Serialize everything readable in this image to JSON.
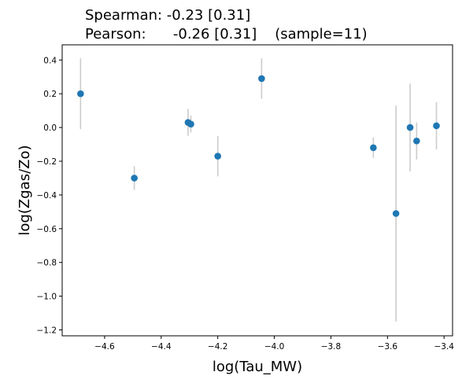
{
  "chart_data": {
    "type": "scatter",
    "title_lines": [
      "Spearman: -0.23 [0.31]",
      "Pearson:      -0.26 [0.31]    (sample=11)"
    ],
    "xlabel": "log(Tau_MW)",
    "ylabel": "log(Zgas/Zo)",
    "xlim": [
      -4.75,
      -3.37
    ],
    "ylim": [
      -1.235,
      0.49
    ],
    "xticks": [
      -4.6,
      -4.4,
      -4.2,
      -4.0,
      -3.8,
      -3.6,
      -3.4
    ],
    "xtick_labels": [
      "−4.6",
      "−4.4",
      "−4.2",
      "−4.0",
      "−3.8",
      "−3.6",
      "−3.4"
    ],
    "yticks": [
      0.4,
      0.2,
      0.0,
      -0.2,
      -0.4,
      -0.6,
      -0.8,
      -1.0,
      -1.2
    ],
    "ytick_labels": [
      "0.4",
      "0.2",
      "0.0",
      "−0.2",
      "−0.4",
      "−0.6",
      "−0.8",
      "−1.0",
      "−1.2"
    ],
    "grid": false,
    "marker_color": "#1f77b4",
    "errorbar_color": "#cccccc",
    "points": [
      {
        "x": -4.685,
        "y": 0.2,
        "yerr_low": 0.21,
        "yerr_high": 0.21
      },
      {
        "x": -4.495,
        "y": -0.3,
        "yerr_low": 0.07,
        "yerr_high": 0.07
      },
      {
        "x": -4.305,
        "y": 0.03,
        "yerr_low": 0.08,
        "yerr_high": 0.08
      },
      {
        "x": -4.295,
        "y": 0.02,
        "yerr_low": 0.05,
        "yerr_high": 0.05
      },
      {
        "x": -4.2,
        "y": -0.17,
        "yerr_low": 0.12,
        "yerr_high": 0.12
      },
      {
        "x": -4.045,
        "y": 0.29,
        "yerr_low": 0.12,
        "yerr_high": 0.12
      },
      {
        "x": -3.65,
        "y": -0.12,
        "yerr_low": 0.06,
        "yerr_high": 0.06
      },
      {
        "x": -3.57,
        "y": -0.51,
        "yerr_low": 0.64,
        "yerr_high": 0.64
      },
      {
        "x": -3.52,
        "y": 0.0,
        "yerr_low": 0.26,
        "yerr_high": 0.26
      },
      {
        "x": -3.497,
        "y": -0.08,
        "yerr_low": 0.11,
        "yerr_high": 0.11
      },
      {
        "x": -3.427,
        "y": 0.01,
        "yerr_low": 0.14,
        "yerr_high": 0.14
      }
    ]
  }
}
